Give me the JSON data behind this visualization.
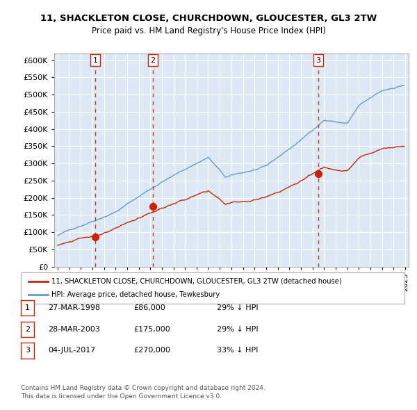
{
  "title": "11, SHACKLETON CLOSE, CHURCHDOWN, GLOUCESTER, GL3 2TW",
  "subtitle": "Price paid vs. HM Land Registry's House Price Index (HPI)",
  "bg_color": "#dce9f5",
  "plot_bg_color": "#dce9f5",
  "hpi_color": "#6699cc",
  "price_color": "#cc2200",
  "sale_marker_color": "#cc2200",
  "vline_color": "#cc2200",
  "ylim": [
    0,
    600000
  ],
  "yticks": [
    0,
    50000,
    100000,
    150000,
    200000,
    250000,
    300000,
    350000,
    400000,
    450000,
    500000,
    550000,
    600000
  ],
  "sales": [
    {
      "label": "1",
      "date": "1998-03-27",
      "price": 86000,
      "pct": "29% ↓ HPI"
    },
    {
      "label": "2",
      "date": "2003-03-28",
      "price": 175000,
      "pct": "29% ↓ HPI"
    },
    {
      "label": "3",
      "date": "2017-07-04",
      "price": 270000,
      "pct": "33% ↓ HPI"
    }
  ],
  "legend_label_red": "11, SHACKLETON CLOSE, CHURCHDOWN, GLOUCESTER, GL3 2TW (detached house)",
  "legend_label_blue": "HPI: Average price, detached house, Tewkesbury",
  "footer": "Contains HM Land Registry data © Crown copyright and database right 2024.\nThis data is licensed under the Open Government Licence v3.0.",
  "sale_display": [
    [
      "1",
      "27-MAR-1998",
      "£86,000",
      "29% ↓ HPI"
    ],
    [
      "2",
      "28-MAR-2003",
      "£175,000",
      "29% ↓ HPI"
    ],
    [
      "3",
      "04-JUL-2017",
      "£270,000",
      "33% ↓ HPI"
    ]
  ]
}
